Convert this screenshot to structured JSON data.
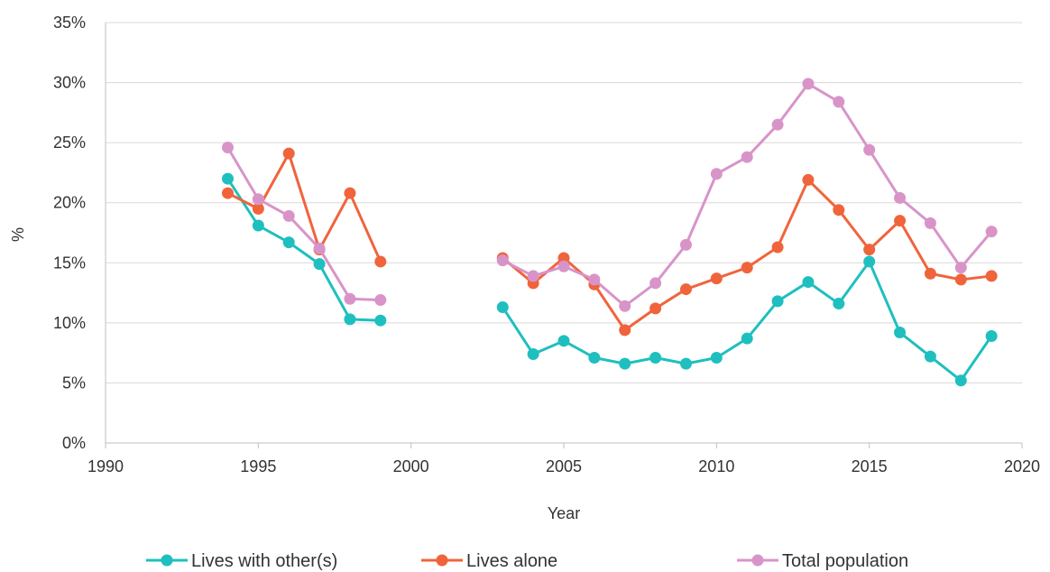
{
  "chart_data": {
    "type": "line",
    "title": "",
    "xlabel": "Year",
    "ylabel": "%",
    "xlim": [
      1990,
      2020
    ],
    "ylim": [
      0,
      35
    ],
    "x_ticks": [
      1990,
      1995,
      2000,
      2005,
      2010,
      2015,
      2020
    ],
    "y_ticks": [
      0,
      5,
      10,
      15,
      20,
      25,
      30,
      35
    ],
    "y_tick_labels": [
      "0%",
      "5%",
      "10%",
      "15%",
      "20%",
      "25%",
      "30%",
      "35%"
    ],
    "grid": "horizontal",
    "legend": "bottom",
    "series": [
      {
        "name": "Lives with other(s)",
        "color": "#1fbfbf",
        "segments": [
          [
            [
              1994,
              22.0
            ],
            [
              1995,
              18.1
            ],
            [
              1996,
              16.7
            ],
            [
              1997,
              14.9
            ],
            [
              1998,
              10.3
            ],
            [
              1999,
              10.2
            ]
          ],
          [
            [
              2003,
              11.3
            ],
            [
              2004,
              7.4
            ],
            [
              2005,
              8.5
            ],
            [
              2006,
              7.1
            ],
            [
              2007,
              6.6
            ],
            [
              2008,
              7.1
            ],
            [
              2009,
              6.6
            ],
            [
              2010,
              7.1
            ],
            [
              2011,
              8.7
            ],
            [
              2012,
              11.8
            ],
            [
              2013,
              13.4
            ],
            [
              2014,
              11.6
            ],
            [
              2015,
              15.1
            ],
            [
              2016,
              9.2
            ],
            [
              2017,
              7.2
            ],
            [
              2018,
              5.2
            ],
            [
              2019,
              8.9
            ]
          ]
        ]
      },
      {
        "name": "Lives alone",
        "color": "#f0643c",
        "segments": [
          [
            [
              1994,
              20.8
            ],
            [
              1995,
              19.5
            ],
            [
              1996,
              24.1
            ],
            [
              1997,
              16.1
            ],
            [
              1998,
              20.8
            ],
            [
              1999,
              15.1
            ]
          ],
          [
            [
              2003,
              15.4
            ],
            [
              2004,
              13.3
            ],
            [
              2005,
              15.4
            ],
            [
              2006,
              13.2
            ],
            [
              2007,
              9.4
            ],
            [
              2008,
              11.2
            ],
            [
              2009,
              12.8
            ],
            [
              2010,
              13.7
            ],
            [
              2011,
              14.6
            ],
            [
              2012,
              16.3
            ],
            [
              2013,
              21.9
            ],
            [
              2014,
              19.4
            ],
            [
              2015,
              16.1
            ],
            [
              2016,
              18.5
            ],
            [
              2017,
              14.1
            ],
            [
              2018,
              13.6
            ],
            [
              2019,
              13.9
            ]
          ]
        ]
      },
      {
        "name": "Total population",
        "color": "#d894c9",
        "segments": [
          [
            [
              1994,
              24.6
            ],
            [
              1995,
              20.3
            ],
            [
              1996,
              18.9
            ],
            [
              1997,
              16.2
            ],
            [
              1998,
              12.0
            ],
            [
              1999,
              11.9
            ]
          ],
          [
            [
              2003,
              15.2
            ],
            [
              2004,
              13.9
            ],
            [
              2005,
              14.7
            ],
            [
              2006,
              13.6
            ],
            [
              2007,
              11.4
            ],
            [
              2008,
              13.3
            ],
            [
              2009,
              16.5
            ],
            [
              2010,
              22.4
            ],
            [
              2011,
              23.8
            ],
            [
              2012,
              26.5
            ],
            [
              2013,
              29.9
            ],
            [
              2014,
              28.4
            ],
            [
              2015,
              24.4
            ],
            [
              2016,
              20.4
            ],
            [
              2017,
              18.3
            ],
            [
              2018,
              14.6
            ],
            [
              2019,
              17.6
            ]
          ]
        ]
      }
    ]
  }
}
